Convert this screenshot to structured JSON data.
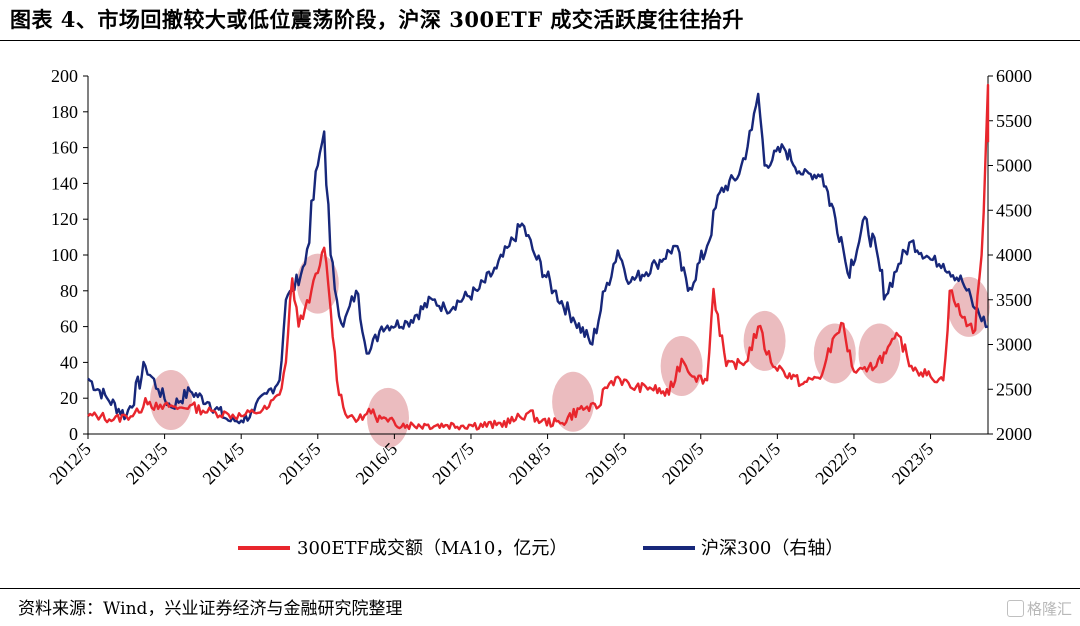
{
  "title": "图表 4、市场回撤较大或低位震荡阶段，沪深 300ETF 成交活跃度往往抬升",
  "source": "资料来源：Wind，兴业证券经济与金融研究院整理",
  "watermark": "格隆汇",
  "colors": {
    "etf": "#e8262d",
    "index": "#17277a",
    "highlight": "#e3a2a6"
  },
  "chart_data": {
    "type": "line",
    "title": "",
    "x_axis": {
      "type": "date",
      "range": [
        "2012-05",
        "2024-02"
      ],
      "ticks": [
        "2012/5",
        "2013/5",
        "2014/5",
        "2015/5",
        "2016/5",
        "2017/5",
        "2018/5",
        "2019/5",
        "2020/5",
        "2021/5",
        "2022/5",
        "2023/5"
      ],
      "tick_label_rotation": "-45deg"
    },
    "y_left": {
      "range": [
        0,
        200
      ],
      "ticks": [
        "0",
        "20",
        "40",
        "60",
        "80",
        "100",
        "120",
        "140",
        "160",
        "180",
        "200"
      ]
    },
    "y_right": {
      "range": [
        2000,
        6000
      ],
      "ticks": [
        "2000",
        "2500",
        "3000",
        "3500",
        "4000",
        "4500",
        "5000",
        "5500",
        "6000"
      ]
    },
    "legend_position": "bottom",
    "grid": false,
    "series": [
      {
        "name": "300ETF成交额（MA10，亿元）",
        "axis": "left",
        "color": "#e8262d",
        "points": [
          [
            "2012-05",
            10
          ],
          [
            "2012-07",
            10
          ],
          [
            "2012-09",
            8
          ],
          [
            "2012-11",
            10
          ],
          [
            "2013-01",
            12
          ],
          [
            "2013-02",
            20
          ],
          [
            "2013-04",
            14
          ],
          [
            "2013-06",
            16
          ],
          [
            "2013-07",
            14
          ],
          [
            "2013-09",
            16
          ],
          [
            "2013-11",
            13
          ],
          [
            "2014-01",
            12
          ],
          [
            "2014-03",
            11
          ],
          [
            "2014-05",
            10
          ],
          [
            "2014-07",
            12
          ],
          [
            "2014-09",
            14
          ],
          [
            "2014-11",
            22
          ],
          [
            "2014-12",
            40
          ],
          [
            "2015-01",
            87
          ],
          [
            "2015-02",
            60
          ],
          [
            "2015-03",
            70
          ],
          [
            "2015-04",
            80
          ],
          [
            "2015-05",
            90
          ],
          [
            "2015-06",
            104
          ],
          [
            "2015-07",
            70
          ],
          [
            "2015-08",
            30
          ],
          [
            "2015-09",
            15
          ],
          [
            "2015-10",
            10
          ],
          [
            "2015-12",
            8
          ],
          [
            "2016-01",
            14
          ],
          [
            "2016-02",
            10
          ],
          [
            "2016-04",
            7
          ],
          [
            "2016-07",
            5
          ],
          [
            "2016-10",
            5
          ],
          [
            "2017-01",
            5
          ],
          [
            "2017-05",
            5
          ],
          [
            "2017-09",
            5
          ],
          [
            "2017-12",
            8
          ],
          [
            "2018-02",
            12
          ],
          [
            "2018-04",
            7
          ],
          [
            "2018-07",
            6
          ],
          [
            "2018-10",
            14
          ],
          [
            "2019-01",
            15
          ],
          [
            "2019-02",
            26
          ],
          [
            "2019-04",
            32
          ],
          [
            "2019-06",
            26
          ],
          [
            "2019-09",
            26
          ],
          [
            "2019-12",
            22
          ],
          [
            "2020-02",
            42
          ],
          [
            "2020-04",
            32
          ],
          [
            "2020-06",
            30
          ],
          [
            "2020-07",
            81
          ],
          [
            "2020-09",
            38
          ],
          [
            "2020-12",
            40
          ],
          [
            "2021-02",
            60
          ],
          [
            "2021-04",
            40
          ],
          [
            "2021-06",
            35
          ],
          [
            "2021-09",
            28
          ],
          [
            "2021-12",
            33
          ],
          [
            "2022-02",
            55
          ],
          [
            "2022-03",
            62
          ],
          [
            "2022-05",
            35
          ],
          [
            "2022-07",
            35
          ],
          [
            "2022-10",
            45
          ],
          [
            "2022-12",
            55
          ],
          [
            "2023-02",
            38
          ],
          [
            "2023-05",
            32
          ],
          [
            "2023-07",
            30
          ],
          [
            "2023-08",
            80
          ],
          [
            "2023-10",
            65
          ],
          [
            "2023-12",
            58
          ],
          [
            "2024-01",
            100
          ],
          [
            "2024-02",
            195
          ],
          [
            "2024-02",
            163
          ]
        ]
      },
      {
        "name": "沪深300（右轴）",
        "axis": "right",
        "color": "#17277a",
        "points": [
          [
            "2012-05",
            2620
          ],
          [
            "2012-08",
            2400
          ],
          [
            "2012-11",
            2200
          ],
          [
            "2013-02",
            2760
          ],
          [
            "2013-04",
            2500
          ],
          [
            "2013-06",
            2300
          ],
          [
            "2013-09",
            2480
          ],
          [
            "2013-12",
            2350
          ],
          [
            "2014-03",
            2150
          ],
          [
            "2014-05",
            2150
          ],
          [
            "2014-07",
            2250
          ],
          [
            "2014-09",
            2450
          ],
          [
            "2014-11",
            2600
          ],
          [
            "2014-12",
            3500
          ],
          [
            "2015-01",
            3600
          ],
          [
            "2015-03",
            3900
          ],
          [
            "2015-05",
            5000
          ],
          [
            "2015-06",
            5380
          ],
          [
            "2015-07",
            4000
          ],
          [
            "2015-08",
            3500
          ],
          [
            "2015-09",
            3200
          ],
          [
            "2015-11",
            3600
          ],
          [
            "2016-01",
            2900
          ],
          [
            "2016-03",
            3200
          ],
          [
            "2016-07",
            3250
          ],
          [
            "2016-11",
            3500
          ],
          [
            "2017-01",
            3400
          ],
          [
            "2017-06",
            3600
          ],
          [
            "2017-09",
            3850
          ],
          [
            "2017-11",
            4100
          ],
          [
            "2018-01",
            4350
          ],
          [
            "2018-03",
            4000
          ],
          [
            "2018-06",
            3600
          ],
          [
            "2018-09",
            3300
          ],
          [
            "2018-12",
            3000
          ],
          [
            "2019-02",
            3600
          ],
          [
            "2019-04",
            4050
          ],
          [
            "2019-06",
            3700
          ],
          [
            "2019-10",
            3900
          ],
          [
            "2020-01",
            4100
          ],
          [
            "2020-03",
            3600
          ],
          [
            "2020-06",
            4100
          ],
          [
            "2020-08",
            4700
          ],
          [
            "2020-11",
            4900
          ],
          [
            "2021-01",
            5400
          ],
          [
            "2021-02",
            5800
          ],
          [
            "2021-03",
            5000
          ],
          [
            "2021-06",
            5200
          ],
          [
            "2021-09",
            4900
          ],
          [
            "2021-12",
            4900
          ],
          [
            "2022-03",
            4200
          ],
          [
            "2022-04",
            3800
          ],
          [
            "2022-07",
            4400
          ],
          [
            "2022-10",
            3550
          ],
          [
            "2022-12",
            3900
          ],
          [
            "2023-02",
            4150
          ],
          [
            "2023-05",
            3950
          ],
          [
            "2023-07",
            3900
          ],
          [
            "2023-10",
            3700
          ],
          [
            "2023-12",
            3400
          ],
          [
            "2024-02",
            3200
          ]
        ]
      }
    ],
    "highlighted_periods": [
      [
        "2013-06",
        19
      ],
      [
        "2015-05",
        84
      ],
      [
        "2016-04",
        9
      ],
      [
        "2018-09",
        18
      ],
      [
        "2020-02",
        38
      ],
      [
        "2021-03",
        52
      ],
      [
        "2022-02",
        45
      ],
      [
        "2022-09",
        45
      ],
      [
        "2023-11",
        71
      ]
    ]
  }
}
